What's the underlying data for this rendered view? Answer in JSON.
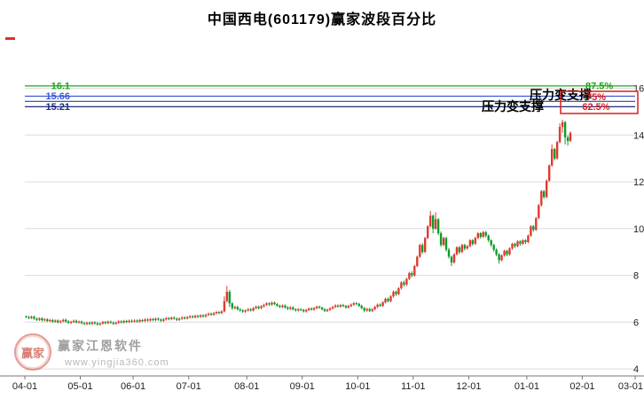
{
  "title": "中国西电(601179)赢家波段百分比",
  "watermark": {
    "logo_text": "赢家",
    "brand": "赢家江恩软件",
    "url": "www.yingjia360.com"
  },
  "chart_data": {
    "type": "candlestick",
    "title": "中国西电(601179)赢家波段百分比",
    "symbol": "601179",
    "stock_name": "中国西电",
    "xlabel": "",
    "ylabel": "",
    "grid": true,
    "up_color": "#e03a30",
    "down_color": "#0f9b2e",
    "grid_color": "#dcdcdc",
    "axis_color": "#777777",
    "y_ticks": [
      4,
      6,
      8,
      10,
      12,
      14,
      16
    ],
    "ylim": [
      3.7,
      17.5
    ],
    "x_tick_labels": [
      "04-01",
      "05-01",
      "06-01",
      "07-01",
      "08-01",
      "09-01",
      "10-01",
      "11-01",
      "12-01",
      "01-01",
      "02-01",
      "03-01"
    ],
    "x_tick_day_offsets": [
      0,
      21,
      41,
      62,
      84,
      105,
      126,
      147,
      168,
      190,
      211,
      231
    ],
    "total_days": 231,
    "levels": [
      {
        "value": 16.1,
        "price_label": "16.1",
        "pct_label": "87.5%",
        "color": "#1ea51e",
        "in_box": false
      },
      {
        "value": 15.66,
        "price_label": "15.66",
        "pct_label": "75%",
        "color": "#3b5bd6",
        "in_box": true
      },
      {
        "value": 15.44,
        "price_label": "",
        "pct_label": "",
        "color": "#33458f",
        "in_box": false
      },
      {
        "value": 15.21,
        "price_label": "15.21",
        "pct_label": "62.5%",
        "color": "#1d2f7e",
        "in_box": true
      }
    ],
    "annotations": [
      {
        "text": "压力变支撑"
      },
      {
        "text": "压力变支撑"
      }
    ],
    "highlight_box_color": "#e01b1b",
    "candles": [
      [
        6.25,
        6.28,
        6.17,
        6.22
      ],
      [
        6.22,
        6.27,
        6.13,
        6.18
      ],
      [
        6.18,
        6.28,
        6.13,
        6.23
      ],
      [
        6.23,
        6.28,
        6.1,
        6.15
      ],
      [
        6.15,
        6.2,
        6.05,
        6.1
      ],
      [
        6.1,
        6.21,
        6.05,
        6.16
      ],
      [
        6.16,
        6.21,
        6.03,
        6.08
      ],
      [
        6.08,
        6.17,
        6.03,
        6.12
      ],
      [
        6.12,
        6.17,
        6.0,
        6.05
      ],
      [
        6.05,
        6.14,
        6.0,
        6.09
      ],
      [
        6.09,
        6.14,
        5.97,
        6.02
      ],
      [
        6.02,
        6.12,
        5.97,
        6.07
      ],
      [
        6.07,
        6.12,
        5.95,
        6.0
      ],
      [
        6.0,
        6.09,
        5.95,
        6.04
      ],
      [
        6.04,
        6.15,
        5.99,
        6.1
      ],
      [
        6.1,
        6.15,
        5.98,
        6.03
      ],
      [
        6.03,
        6.08,
        5.92,
        5.97
      ],
      [
        5.97,
        6.06,
        5.92,
        6.01
      ],
      [
        6.01,
        6.11,
        5.96,
        6.06
      ],
      [
        6.06,
        6.11,
        5.94,
        5.99
      ],
      [
        5.99,
        6.07,
        5.94,
        6.02
      ],
      [
        6.02,
        6.07,
        5.91,
        5.96
      ],
      [
        5.96,
        6.01,
        5.87,
        5.92
      ],
      [
        5.92,
        6.02,
        5.87,
        5.97
      ],
      [
        5.97,
        6.02,
        5.88,
        5.93
      ],
      [
        5.93,
        6.04,
        5.88,
        5.99
      ],
      [
        5.99,
        6.04,
        5.9,
        5.95
      ],
      [
        5.95,
        6.0,
        5.85,
        5.9
      ],
      [
        5.9,
        5.99,
        5.85,
        5.94
      ],
      [
        5.94,
        6.05,
        5.89,
        6.0
      ],
      [
        6.0,
        6.05,
        5.91,
        5.96
      ],
      [
        5.96,
        6.07,
        5.91,
        6.02
      ],
      [
        6.02,
        6.07,
        5.93,
        5.98
      ],
      [
        5.98,
        6.03,
        5.88,
        5.93
      ],
      [
        5.93,
        6.02,
        5.88,
        5.97
      ],
      [
        5.97,
        6.08,
        5.92,
        6.03
      ],
      [
        6.03,
        6.08,
        5.94,
        5.99
      ],
      [
        5.99,
        6.1,
        5.94,
        6.05
      ],
      [
        6.05,
        6.1,
        5.96,
        6.01
      ],
      [
        6.01,
        6.11,
        5.96,
        6.06
      ],
      [
        6.06,
        6.11,
        5.98,
        6.03
      ],
      [
        6.03,
        6.12,
        5.98,
        6.07
      ],
      [
        6.07,
        6.12,
        5.98,
        6.03
      ],
      [
        6.03,
        6.14,
        5.98,
        6.09
      ],
      [
        6.09,
        6.14,
        6.0,
        6.05
      ],
      [
        6.05,
        6.16,
        6.0,
        6.11
      ],
      [
        6.11,
        6.16,
        6.02,
        6.07
      ],
      [
        6.07,
        6.18,
        6.02,
        6.13
      ],
      [
        6.13,
        6.18,
        6.04,
        6.09
      ],
      [
        6.09,
        6.2,
        6.04,
        6.15
      ],
      [
        6.15,
        6.2,
        6.06,
        6.11
      ],
      [
        6.11,
        6.16,
        6.01,
        6.06
      ],
      [
        6.06,
        6.17,
        6.01,
        6.12
      ],
      [
        6.12,
        6.22,
        6.07,
        6.17
      ],
      [
        6.17,
        6.22,
        6.08,
        6.13
      ],
      [
        6.13,
        6.24,
        6.08,
        6.19
      ],
      [
        6.19,
        6.24,
        6.1,
        6.15
      ],
      [
        6.15,
        6.2,
        6.05,
        6.1
      ],
      [
        6.1,
        6.2,
        6.05,
        6.15
      ],
      [
        6.15,
        6.25,
        6.1,
        6.2
      ],
      [
        6.2,
        6.25,
        6.11,
        6.16
      ],
      [
        6.16,
        6.26,
        6.11,
        6.21
      ],
      [
        6.21,
        6.3,
        6.16,
        6.25
      ],
      [
        6.25,
        6.3,
        6.16,
        6.21
      ],
      [
        6.21,
        6.32,
        6.16,
        6.27
      ],
      [
        6.27,
        6.32,
        6.18,
        6.23
      ],
      [
        6.23,
        6.34,
        6.18,
        6.29
      ],
      [
        6.29,
        6.34,
        6.2,
        6.25
      ],
      [
        6.25,
        6.36,
        6.2,
        6.31
      ],
      [
        6.31,
        6.41,
        6.26,
        6.36
      ],
      [
        6.36,
        6.41,
        6.27,
        6.32
      ],
      [
        6.32,
        6.43,
        6.27,
        6.38
      ],
      [
        6.38,
        6.48,
        6.33,
        6.43
      ],
      [
        6.43,
        6.48,
        6.34,
        6.39
      ],
      [
        6.39,
        6.51,
        6.34,
        6.46
      ],
      [
        6.46,
        7.1,
        6.42,
        6.9
      ],
      [
        6.9,
        7.55,
        6.85,
        7.3
      ],
      [
        7.3,
        7.38,
        6.65,
        6.8
      ],
      [
        6.8,
        6.85,
        6.52,
        6.6
      ],
      [
        6.6,
        6.7,
        6.55,
        6.65
      ],
      [
        6.65,
        6.7,
        6.5,
        6.55
      ],
      [
        6.55,
        6.6,
        6.45,
        6.5
      ],
      [
        6.5,
        6.55,
        6.4,
        6.45
      ],
      [
        6.45,
        6.55,
        6.4,
        6.5
      ],
      [
        6.5,
        6.6,
        6.45,
        6.55
      ],
      [
        6.55,
        6.6,
        6.45,
        6.5
      ],
      [
        6.5,
        6.65,
        6.45,
        6.6
      ],
      [
        6.6,
        6.71,
        6.55,
        6.66
      ],
      [
        6.66,
        6.71,
        6.55,
        6.6
      ],
      [
        6.6,
        6.73,
        6.55,
        6.68
      ],
      [
        6.68,
        6.79,
        6.63,
        6.74
      ],
      [
        6.74,
        6.85,
        6.69,
        6.8
      ],
      [
        6.8,
        6.85,
        6.7,
        6.75
      ],
      [
        6.75,
        6.88,
        6.7,
        6.83
      ],
      [
        6.83,
        6.88,
        6.72,
        6.77
      ],
      [
        6.77,
        6.82,
        6.65,
        6.7
      ],
      [
        6.7,
        6.75,
        6.6,
        6.65
      ],
      [
        6.65,
        6.76,
        6.6,
        6.71
      ],
      [
        6.71,
        6.76,
        6.58,
        6.63
      ],
      [
        6.63,
        6.68,
        6.52,
        6.57
      ],
      [
        6.57,
        6.68,
        6.52,
        6.63
      ],
      [
        6.63,
        6.68,
        6.5,
        6.55
      ],
      [
        6.55,
        6.6,
        6.45,
        6.5
      ],
      [
        6.5,
        6.6,
        6.45,
        6.55
      ],
      [
        6.55,
        6.6,
        6.47,
        6.52
      ],
      [
        6.52,
        6.57,
        6.41,
        6.46
      ],
      [
        6.46,
        6.57,
        6.41,
        6.52
      ],
      [
        6.52,
        6.63,
        6.47,
        6.58
      ],
      [
        6.58,
        6.63,
        6.49,
        6.54
      ],
      [
        6.54,
        6.65,
        6.49,
        6.6
      ],
      [
        6.6,
        6.71,
        6.55,
        6.66
      ],
      [
        6.66,
        6.71,
        6.57,
        6.62
      ],
      [
        6.62,
        6.67,
        6.5,
        6.55
      ],
      [
        6.55,
        6.6,
        6.43,
        6.48
      ],
      [
        6.48,
        6.58,
        6.43,
        6.53
      ],
      [
        6.53,
        6.64,
        6.48,
        6.59
      ],
      [
        6.59,
        6.7,
        6.54,
        6.65
      ],
      [
        6.65,
        6.76,
        6.6,
        6.71
      ],
      [
        6.71,
        6.76,
        6.62,
        6.67
      ],
      [
        6.67,
        6.78,
        6.62,
        6.73
      ],
      [
        6.73,
        6.78,
        6.64,
        6.69
      ],
      [
        6.69,
        6.74,
        6.58,
        6.63
      ],
      [
        6.63,
        6.74,
        6.58,
        6.69
      ],
      [
        6.69,
        6.8,
        6.64,
        6.75
      ],
      [
        6.75,
        6.86,
        6.7,
        6.81
      ],
      [
        6.81,
        6.86,
        6.73,
        6.78
      ],
      [
        6.78,
        6.83,
        6.65,
        6.7
      ],
      [
        6.7,
        6.75,
        6.55,
        6.6
      ],
      [
        6.6,
        6.65,
        6.42,
        6.5
      ],
      [
        6.5,
        6.61,
        6.45,
        6.56
      ],
      [
        6.56,
        6.61,
        6.43,
        6.48
      ],
      [
        6.48,
        6.6,
        6.43,
        6.55
      ],
      [
        6.55,
        6.7,
        6.5,
        6.65
      ],
      [
        6.65,
        6.8,
        6.6,
        6.75
      ],
      [
        6.75,
        6.8,
        6.65,
        6.7
      ],
      [
        6.7,
        6.9,
        6.65,
        6.85
      ],
      [
        6.85,
        7.05,
        6.8,
        7.0
      ],
      [
        7.0,
        7.05,
        6.85,
        6.9
      ],
      [
        6.9,
        7.15,
        6.85,
        7.1
      ],
      [
        7.1,
        7.35,
        7.05,
        7.3
      ],
      [
        7.3,
        7.35,
        7.12,
        7.2
      ],
      [
        7.2,
        7.5,
        7.15,
        7.45
      ],
      [
        7.45,
        7.75,
        7.4,
        7.7
      ],
      [
        7.7,
        7.78,
        7.52,
        7.6
      ],
      [
        7.6,
        7.9,
        7.55,
        7.85
      ],
      [
        7.85,
        8.15,
        7.8,
        8.1
      ],
      [
        8.1,
        8.18,
        7.92,
        8.0
      ],
      [
        8.0,
        8.45,
        7.95,
        8.4
      ],
      [
        8.4,
        8.85,
        8.35,
        8.8
      ],
      [
        8.8,
        9.35,
        8.75,
        9.3
      ],
      [
        9.3,
        9.38,
        8.92,
        9.0
      ],
      [
        9.0,
        9.65,
        8.95,
        9.6
      ],
      [
        9.6,
        10.15,
        9.55,
        10.1
      ],
      [
        10.1,
        10.75,
        10.05,
        10.55
      ],
      [
        10.55,
        10.6,
        9.8,
        10.0
      ],
      [
        10.0,
        10.7,
        9.95,
        10.4
      ],
      [
        10.4,
        10.45,
        9.72,
        9.8
      ],
      [
        9.8,
        9.88,
        9.22,
        9.3
      ],
      [
        9.3,
        9.65,
        9.25,
        9.6
      ],
      [
        9.6,
        9.65,
        9.02,
        9.1
      ],
      [
        9.1,
        9.18,
        8.72,
        8.8
      ],
      [
        8.8,
        8.85,
        8.4,
        8.55
      ],
      [
        8.55,
        8.95,
        8.5,
        8.9
      ],
      [
        8.9,
        9.25,
        8.85,
        9.2
      ],
      [
        9.2,
        9.25,
        8.92,
        9.0
      ],
      [
        9.0,
        9.35,
        8.95,
        9.3
      ],
      [
        9.3,
        9.35,
        9.07,
        9.15
      ],
      [
        9.15,
        9.3,
        9.1,
        9.25
      ],
      [
        9.25,
        9.55,
        9.2,
        9.5
      ],
      [
        9.5,
        9.55,
        9.27,
        9.35
      ],
      [
        9.35,
        9.65,
        9.3,
        9.6
      ],
      [
        9.6,
        9.85,
        9.55,
        9.8
      ],
      [
        9.8,
        9.85,
        9.57,
        9.65
      ],
      [
        9.65,
        9.9,
        9.6,
        9.85
      ],
      [
        9.85,
        9.9,
        9.62,
        9.7
      ],
      [
        9.7,
        9.75,
        9.42,
        9.5
      ],
      [
        9.5,
        9.55,
        9.22,
        9.3
      ],
      [
        9.3,
        9.35,
        9.02,
        9.1
      ],
      [
        9.1,
        9.15,
        8.82,
        8.9
      ],
      [
        8.9,
        8.95,
        8.5,
        8.65
      ],
      [
        8.65,
        8.9,
        8.6,
        8.85
      ],
      [
        8.85,
        9.1,
        8.8,
        9.05
      ],
      [
        9.05,
        9.1,
        8.82,
        8.9
      ],
      [
        8.9,
        9.2,
        8.85,
        9.15
      ],
      [
        9.15,
        9.4,
        9.1,
        9.35
      ],
      [
        9.35,
        9.4,
        9.17,
        9.25
      ],
      [
        9.25,
        9.5,
        9.2,
        9.45
      ],
      [
        9.45,
        9.5,
        9.27,
        9.35
      ],
      [
        9.35,
        9.55,
        9.3,
        9.5
      ],
      [
        9.5,
        9.55,
        9.34,
        9.42
      ],
      [
        9.42,
        9.75,
        9.37,
        9.7
      ],
      [
        9.7,
        10.15,
        9.65,
        10.1
      ],
      [
        10.1,
        10.15,
        9.87,
        9.95
      ],
      [
        9.95,
        10.5,
        9.9,
        10.45
      ],
      [
        10.45,
        11.05,
        10.4,
        11.0
      ],
      [
        11.0,
        11.65,
        10.95,
        11.6
      ],
      [
        11.6,
        11.65,
        11.27,
        11.35
      ],
      [
        11.35,
        12.1,
        11.3,
        12.05
      ],
      [
        12.05,
        12.75,
        12.0,
        12.7
      ],
      [
        12.7,
        13.6,
        12.65,
        13.4
      ],
      [
        13.4,
        13.45,
        12.92,
        13.0
      ],
      [
        13.0,
        13.75,
        12.95,
        13.7
      ],
      [
        13.7,
        14.5,
        13.65,
        14.35
      ],
      [
        14.35,
        14.65,
        14.1,
        14.55
      ],
      [
        14.55,
        14.6,
        13.6,
        13.9
      ],
      [
        13.9,
        13.98,
        13.55,
        13.75
      ],
      [
        13.75,
        14.15,
        13.7,
        14.1
      ]
    ]
  }
}
